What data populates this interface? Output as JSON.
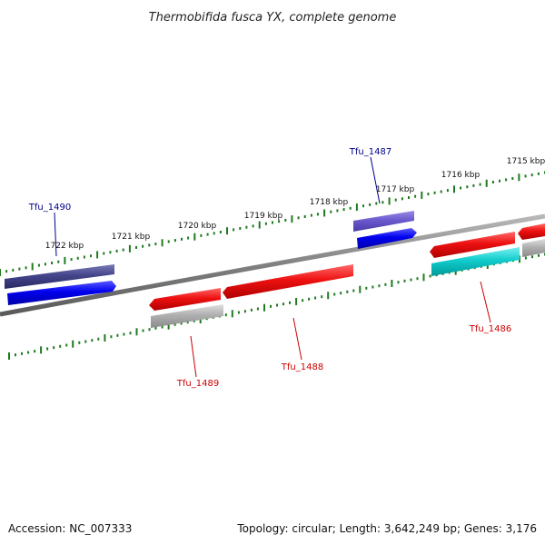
{
  "title": "Thermobifida fusca YX, complete genome",
  "footer": {
    "accession": "Accession: NC_007333",
    "summary": "Topology: circular; Length: 3,642,249 bp; Genes: 3,176"
  },
  "ruler_labels": [
    "1722 kbp",
    "1721 kbp",
    "1720 kbp",
    "1719 kbp",
    "1718 kbp",
    "1717 kbp",
    "1716 kbp",
    "1715 kbp"
  ],
  "colors": {
    "backbone": "#808080",
    "ticks": "#1f7a1f",
    "forward_gene": "#0000ee",
    "forward_gene_alt": "#44448a",
    "forward_gene_light": "#6a5acd",
    "reverse_gene": "#ee1111",
    "reverse_gene_grey": "#b0b0b0",
    "reverse_gene_cyan": "#11cccc",
    "label_blue": "#00008b",
    "label_red": "#cc0000"
  },
  "gene_labels": {
    "tfu_1490": "Tfu_1490",
    "tfu_1487": "Tfu_1487",
    "tfu_1489": "Tfu_1489",
    "tfu_1488": "Tfu_1488",
    "tfu_1486": "Tfu_1486"
  }
}
